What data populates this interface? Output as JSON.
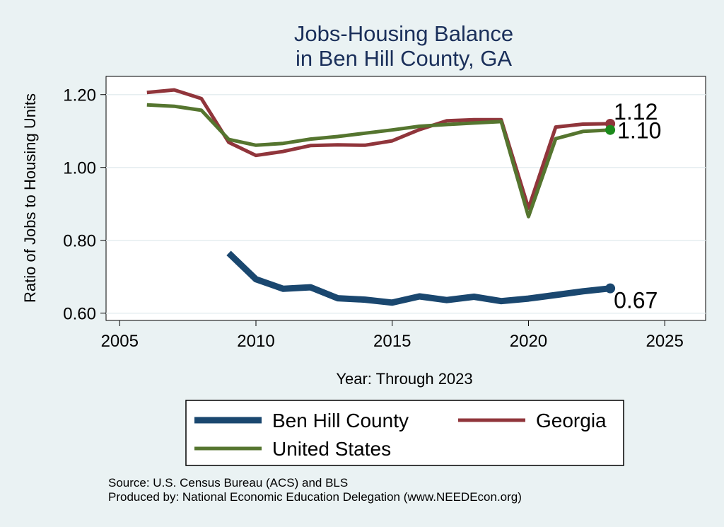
{
  "chart_data": {
    "type": "line",
    "title": [
      "Jobs-Housing Balance",
      "in Ben Hill County, GA"
    ],
    "xlabel": "Year: Through 2023",
    "ylabel": "Ratio of Jobs to Housing Units",
    "xlim": [
      2004.5,
      2026.5
    ],
    "ylim": [
      0.58,
      1.25
    ],
    "xticks": [
      2005,
      2010,
      2015,
      2020,
      2025
    ],
    "yticks": [
      0.6,
      0.8,
      1.0,
      1.2
    ],
    "ytick_labels": [
      "0.60",
      "0.80",
      "1.00",
      "1.20"
    ],
    "grid": true,
    "legend_position": "bottom",
    "series": [
      {
        "name": "Ben Hill County",
        "color": "#1a476f",
        "width": 9,
        "end_label": "0.67",
        "x": [
          2009,
          2010,
          2011,
          2012,
          2013,
          2014,
          2015,
          2016,
          2017,
          2018,
          2019,
          2020,
          2021,
          2022,
          2023
        ],
        "y": [
          0.765,
          0.693,
          0.667,
          0.671,
          0.641,
          0.637,
          0.629,
          0.646,
          0.636,
          0.645,
          0.633,
          0.64,
          0.65,
          0.66,
          0.668
        ]
      },
      {
        "name": "Georgia",
        "color": "#90353b",
        "width": 5,
        "end_label": "1.12",
        "x": [
          2006,
          2007,
          2008,
          2009,
          2010,
          2011,
          2012,
          2013,
          2014,
          2015,
          2016,
          2017,
          2018,
          2019,
          2020,
          2021,
          2022,
          2023
        ],
        "y": [
          1.206,
          1.213,
          1.189,
          1.069,
          1.033,
          1.044,
          1.06,
          1.062,
          1.061,
          1.073,
          1.104,
          1.128,
          1.131,
          1.131,
          0.888,
          1.111,
          1.119,
          1.12
        ]
      },
      {
        "name": "United States",
        "color": "#55752f",
        "width": 5,
        "end_label": "1.10",
        "x": [
          2006,
          2007,
          2008,
          2009,
          2010,
          2011,
          2012,
          2013,
          2014,
          2015,
          2016,
          2017,
          2018,
          2019,
          2020,
          2021,
          2022,
          2023
        ],
        "y": [
          1.172,
          1.168,
          1.157,
          1.077,
          1.061,
          1.066,
          1.078,
          1.085,
          1.094,
          1.103,
          1.113,
          1.118,
          1.122,
          1.126,
          0.865,
          1.079,
          1.099,
          1.103
        ]
      }
    ]
  },
  "source_note": "Source: U.S. Census Bureau (ACS) and BLS",
  "producer_note": "Produced by: National Economic Education Delegation (www.NEEDEcon.org)"
}
